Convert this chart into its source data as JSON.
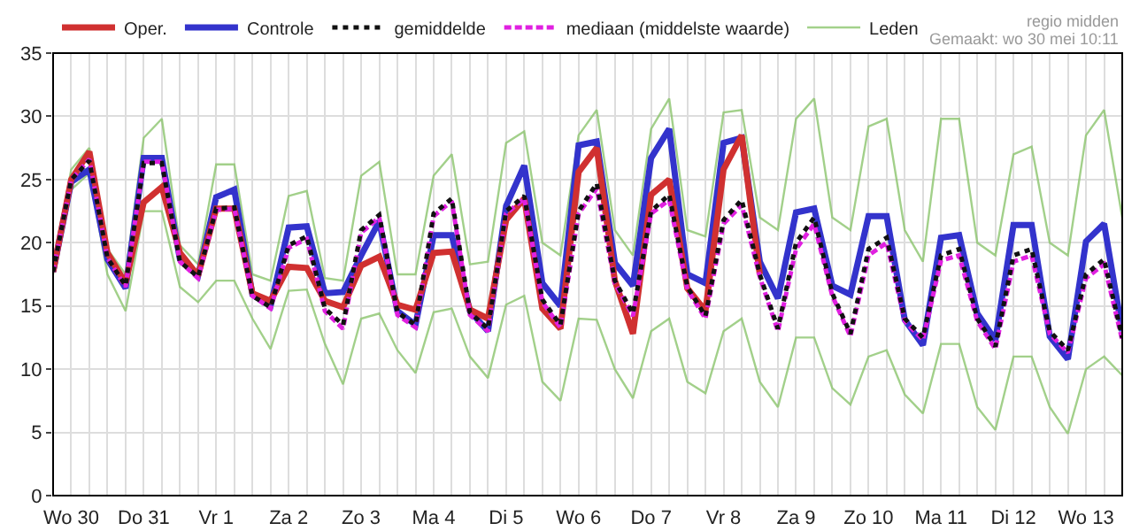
{
  "chart_data": {
    "type": "line",
    "categories": [
      null,
      "Wo 30",
      null,
      null,
      null,
      "Do 31",
      null,
      null,
      null,
      "Vr 1",
      null,
      null,
      null,
      "Za 2",
      null,
      null,
      null,
      "Zo 3",
      null,
      null,
      null,
      "Ma 4",
      null,
      null,
      null,
      "Di 5",
      null,
      null,
      null,
      "Wo 6",
      null,
      null,
      null,
      "Do 7",
      null,
      null,
      null,
      "Vr 8",
      null,
      null,
      null,
      "Za 9",
      null,
      null,
      null,
      "Zo 10",
      null,
      null,
      null,
      "Ma 11",
      null,
      null,
      null,
      "Di 12",
      null,
      null,
      null,
      "Wo 13",
      null,
      null
    ],
    "series": [
      {
        "name": "Leden",
        "color": "#8cc56e",
        "values": [
          18,
          25.8,
          27.5,
          19.5,
          17.5,
          28.3,
          29.8,
          19.8,
          18.3,
          26.2,
          26.2,
          17.5,
          17,
          23.7,
          24.1,
          17.2,
          17,
          25.3,
          26.4,
          17.5,
          17.5,
          25.3,
          27,
          18.3,
          18.5,
          27.9,
          28.8,
          20,
          19,
          28.5,
          30.5,
          21,
          19,
          29,
          31.4,
          21,
          20.5,
          30.3,
          30.5,
          22,
          21,
          29.8,
          31.4,
          22,
          21,
          29.2,
          29.8,
          21,
          18.5,
          29.8,
          29.8,
          20,
          19,
          27,
          27.6,
          20,
          19,
          28.5,
          30.5,
          22
        ]
      },
      {
        "color": "#8cc56e",
        "values": [
          17.5,
          24.2,
          25.5,
          17.5,
          14.6,
          22.5,
          22.5,
          16.5,
          15.3,
          17,
          17,
          14,
          11.6,
          16.2,
          16.3,
          12,
          8.8,
          14,
          14.4,
          11.5,
          9.7,
          14.5,
          14.8,
          11,
          9.3,
          15.1,
          15.8,
          9,
          7.5,
          14,
          13.9,
          10,
          7.7,
          13,
          14,
          9,
          8.1,
          13,
          14,
          9,
          7,
          12.5,
          12.5,
          8.5,
          7.2,
          11,
          11.5,
          8,
          6.5,
          12,
          12,
          7,
          5.2,
          11,
          11,
          7,
          4.9,
          10,
          11,
          9.5
        ]
      },
      {
        "name": "mediaan (middelste waarde)",
        "color": "#e020e0",
        "line_style": "dashed",
        "values": [
          17.7,
          25,
          26.6,
          18.8,
          16.5,
          26.4,
          26.4,
          18.5,
          17.2,
          22.6,
          22.7,
          15.8,
          14.8,
          19.6,
          20.3,
          14.6,
          13.2,
          20.8,
          22,
          14.3,
          13.3,
          22.1,
          23.3,
          14.3,
          13,
          22.3,
          23.5,
          15.3,
          13.3,
          22.3,
          24.3,
          16.8,
          14.2,
          22.3,
          23.4,
          16.3,
          14,
          21.5,
          23,
          17.3,
          13,
          19.5,
          21.5,
          15.8,
          12.6,
          19,
          20,
          13.8,
          12.3,
          18.6,
          19,
          13.8,
          11.6,
          18.5,
          19,
          12.8,
          11.3,
          17.2,
          18.3,
          12.3
        ]
      },
      {
        "name": "gemiddelde",
        "color": "#111111",
        "line_style": "dotted",
        "values": [
          17.7,
          25,
          26.5,
          18.8,
          16.6,
          26.3,
          26.3,
          18.5,
          17.3,
          22.7,
          22.8,
          15.8,
          14.9,
          19.8,
          20.5,
          14.8,
          13.5,
          21,
          22.2,
          14.5,
          13.5,
          22.3,
          23.5,
          14.5,
          13.2,
          22.5,
          23.7,
          15.5,
          13.5,
          22.5,
          24.7,
          17,
          14.4,
          22.5,
          23.8,
          16.5,
          14.2,
          21.8,
          23.4,
          17.5,
          13.2,
          20,
          22,
          16,
          12.8,
          19.5,
          20.4,
          14,
          12.5,
          19,
          19.5,
          14,
          11.8,
          19,
          19.5,
          13,
          11.5,
          17.5,
          18.7,
          12.5
        ]
      },
      {
        "name": "Controle",
        "color": "#3333cc",
        "values": [
          17.7,
          24.8,
          25.8,
          18.7,
          16.4,
          26.7,
          26.7,
          18.7,
          17.4,
          23.6,
          24.2,
          15.9,
          15,
          21.2,
          21.3,
          16,
          16.1,
          19,
          21.7,
          14.6,
          13.5,
          20.6,
          20.6,
          14.6,
          13,
          22.9,
          26.1,
          16.8,
          15,
          27.7,
          28,
          18.4,
          16.6,
          26.7,
          29,
          17.5,
          16.8,
          27.9,
          28.3,
          18.5,
          15.6,
          22.4,
          22.7,
          16.6,
          15.9,
          22.1,
          22.1,
          13.9,
          11.9,
          20.4,
          20.6,
          14.4,
          12.3,
          21.4,
          21.4,
          12.6,
          10.8,
          20.1,
          21.5,
          13
        ]
      },
      {
        "name": "Oper.",
        "color": "#d03030",
        "values": [
          17.7,
          25,
          27.2,
          19.2,
          16.8,
          23.2,
          24.4,
          19.2,
          17.4,
          22.7,
          22.7,
          16,
          15.4,
          18.1,
          18,
          15.4,
          14.9,
          18.2,
          18.9,
          15.1,
          14.7,
          19.2,
          19.3,
          14.7,
          14,
          21.8,
          23.5,
          14.8,
          13.2,
          25.6,
          27.5,
          17,
          12.8,
          23.8,
          25,
          16.4,
          14.6,
          25.8,
          28.5,
          17.5,
          null,
          null,
          null,
          null,
          null,
          null,
          null,
          null,
          null,
          null,
          null,
          null,
          null,
          null,
          null,
          null,
          null,
          null,
          null,
          null
        ]
      }
    ],
    "ylim": [
      0,
      35
    ],
    "yticks": [
      0,
      5,
      10,
      15,
      20,
      25,
      30,
      35
    ],
    "annotations": [
      "regio midden",
      "Gemaakt: wo 30 mei 10:11"
    ],
    "grid": true,
    "legend": "top",
    "marker": "none",
    "line_style": "solid"
  }
}
